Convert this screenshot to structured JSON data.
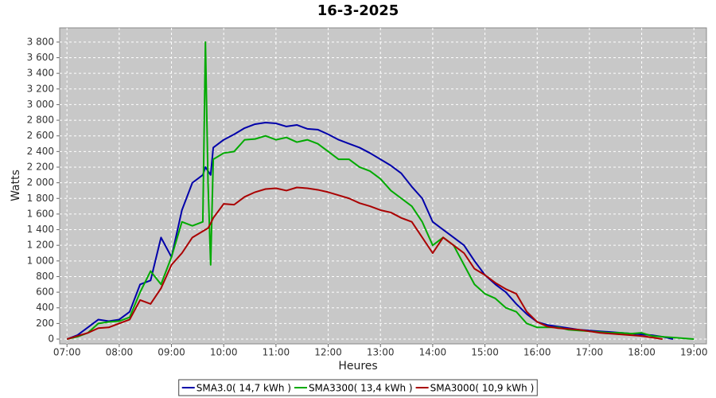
{
  "chart_data": {
    "type": "line",
    "title": "16-3-2025",
    "x_label": "Heures",
    "y_label": "Watts",
    "x": [
      7,
      7.2,
      7.4,
      7.6,
      7.8,
      8,
      8.2,
      8.4,
      8.6,
      8.8,
      9,
      9.2,
      9.4,
      9.6,
      9.65,
      9.7,
      9.75,
      9.8,
      10,
      10.2,
      10.4,
      10.6,
      10.8,
      11,
      11.2,
      11.4,
      11.6,
      11.8,
      12,
      12.2,
      12.4,
      12.6,
      12.8,
      13,
      13.2,
      13.4,
      13.6,
      13.8,
      14,
      14.2,
      14.4,
      14.6,
      14.8,
      15,
      15.2,
      15.4,
      15.6,
      15.8,
      16,
      16.2,
      16.4,
      16.6,
      16.8,
      17,
      17.2,
      17.4,
      17.6,
      17.8,
      18,
      18.2,
      18.4,
      18.6,
      18.8,
      19
    ],
    "series": [
      {
        "name": "SMA3.0( 14,7 kWh )",
        "color": "#0000aa",
        "values": [
          0,
          50,
          150,
          250,
          230,
          250,
          350,
          700,
          750,
          1300,
          1050,
          1650,
          2000,
          2100,
          2200,
          2150,
          2100,
          2450,
          2550,
          2620,
          2700,
          2750,
          2770,
          2760,
          2720,
          2740,
          2690,
          2680,
          2620,
          2550,
          2500,
          2450,
          2380,
          2300,
          2220,
          2120,
          1950,
          1800,
          1500,
          1400,
          1300,
          1200,
          1000,
          820,
          700,
          600,
          450,
          320,
          220,
          180,
          160,
          140,
          120,
          110,
          100,
          90,
          80,
          70,
          60,
          50,
          30,
          0,
          null,
          null
        ]
      },
      {
        "name": "SMA3300( 13,4 kWh )",
        "color": "#00aa00",
        "values": [
          0,
          30,
          80,
          200,
          220,
          230,
          280,
          600,
          870,
          700,
          1050,
          1500,
          1450,
          1500,
          3800,
          2000,
          950,
          2300,
          2380,
          2400,
          2550,
          2560,
          2600,
          2550,
          2580,
          2520,
          2550,
          2500,
          2400,
          2300,
          2300,
          2200,
          2150,
          2050,
          1900,
          1800,
          1700,
          1500,
          1200,
          1300,
          1200,
          950,
          700,
          580,
          520,
          400,
          350,
          200,
          150,
          150,
          150,
          120,
          110,
          100,
          90,
          80,
          80,
          70,
          80,
          40,
          30,
          20,
          10,
          0
        ]
      },
      {
        "name": "SMA3000( 10,9 kWh )",
        "color": "#aa0000",
        "values": [
          0,
          40,
          80,
          140,
          150,
          200,
          250,
          500,
          450,
          650,
          950,
          1100,
          1300,
          1380,
          1400,
          1420,
          1480,
          1550,
          1730,
          1720,
          1820,
          1880,
          1920,
          1930,
          1900,
          1940,
          1930,
          1910,
          1880,
          1840,
          1800,
          1740,
          1700,
          1650,
          1620,
          1550,
          1500,
          1300,
          1100,
          1300,
          1200,
          1100,
          900,
          820,
          720,
          640,
          580,
          350,
          220,
          160,
          140,
          130,
          120,
          100,
          80,
          70,
          60,
          50,
          40,
          20,
          0,
          null,
          null,
          null
        ]
      }
    ],
    "xlim": [
      6.86,
      19.24
    ],
    "ylim": [
      -61,
      3982
    ],
    "xticks": [
      {
        "value": 7,
        "label": "07:00"
      },
      {
        "value": 8,
        "label": "08:00"
      },
      {
        "value": 9,
        "label": "09:00"
      },
      {
        "value": 10,
        "label": "10:00"
      },
      {
        "value": 11,
        "label": "11:00"
      },
      {
        "value": 12,
        "label": "12:00"
      },
      {
        "value": 13,
        "label": "13:00"
      },
      {
        "value": 14,
        "label": "14:00"
      },
      {
        "value": 15,
        "label": "15:00"
      },
      {
        "value": 16,
        "label": "16:00"
      },
      {
        "value": 17,
        "label": "17:00"
      },
      {
        "value": 18,
        "label": "18:00"
      },
      {
        "value": 19,
        "label": "19:00"
      }
    ],
    "yticks": [
      0,
      200,
      400,
      600,
      800,
      {
        "value": 1000,
        "label": "1 000"
      },
      {
        "value": 1200,
        "label": "1 200"
      },
      {
        "value": 1400,
        "label": "1 400"
      },
      {
        "value": 1600,
        "label": "1 600"
      },
      {
        "value": 1800,
        "label": "1 800"
      },
      {
        "value": 2000,
        "label": "2 000"
      },
      {
        "value": 2200,
        "label": "2 200"
      },
      {
        "value": 2400,
        "label": "2 400"
      },
      {
        "value": 2600,
        "label": "2 600"
      },
      {
        "value": 2800,
        "label": "2 800"
      },
      {
        "value": 3000,
        "label": "3 000"
      },
      {
        "value": 3200,
        "label": "3 200"
      },
      {
        "value": 3400,
        "label": "3 400"
      },
      {
        "value": 3600,
        "label": "3 600"
      },
      {
        "value": 3800,
        "label": "3 800"
      }
    ],
    "grid": true,
    "legend": "bottom"
  }
}
